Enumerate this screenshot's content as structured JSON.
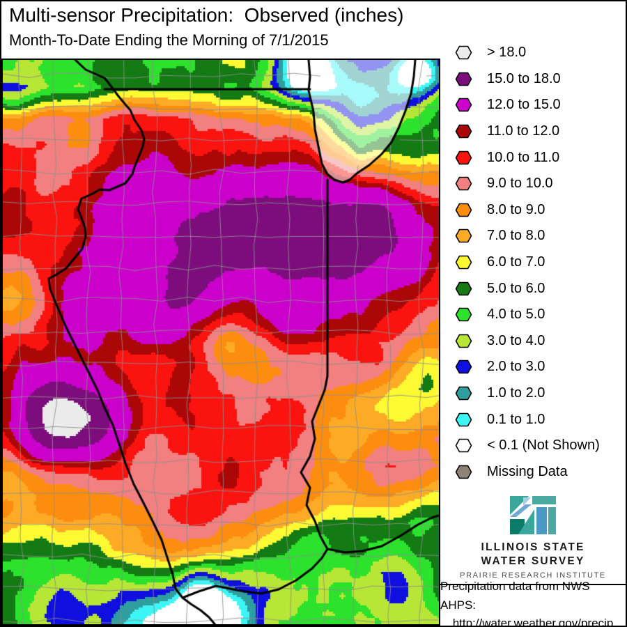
{
  "header": {
    "title": "Multi-sensor Precipitation:  Observed (inches)",
    "subtitle": "Month-To-Date Ending the Morning of 7/1/2015"
  },
  "legend": {
    "items": [
      {
        "label": "> 18.0",
        "color": "#ebebeb"
      },
      {
        "label": "15.0 to 18.0",
        "color": "#7d0d7d"
      },
      {
        "label": "12.0 to 15.0",
        "color": "#cb00cb"
      },
      {
        "label": "11.0 to 12.0",
        "color": "#ab0707"
      },
      {
        "label": "10.0 to 11.0",
        "color": "#fb1310"
      },
      {
        "label": "9.0 to 10.0",
        "color": "#f28080"
      },
      {
        "label": "8.0 to 9.0",
        "color": "#fd8d0e"
      },
      {
        "label": "7.0 to 8.0",
        "color": "#fdab27"
      },
      {
        "label": "6.0 to 7.0",
        "color": "#fdfa33"
      },
      {
        "label": "5.0 to 6.0",
        "color": "#147a14"
      },
      {
        "label": "4.0 to 5.0",
        "color": "#2ce22c"
      },
      {
        "label": "3.0 to 4.0",
        "color": "#b8e636"
      },
      {
        "label": "2.0 to 3.0",
        "color": "#0f0fe0"
      },
      {
        "label": "1.0 to 2.0",
        "color": "#2f9e9e"
      },
      {
        "label": "0.1 to 1.0",
        "color": "#3df5f5"
      },
      {
        "label": "< 0.1 (Not Shown)",
        "color": "#ffffff"
      },
      {
        "label": "Missing Data",
        "color": "#8c8374"
      }
    ]
  },
  "map": {
    "bins": [
      18,
      15,
      12,
      11,
      10,
      9,
      8,
      7,
      6,
      5,
      4,
      3,
      2,
      1,
      0.1
    ],
    "state_border_color": "#000000",
    "county_line_color": "#8d8d8d",
    "lake_wash": 0.55
  },
  "logo": {
    "line1": "ILLINOIS STATE",
    "line2": "WATER SURVEY",
    "line3": "PRAIRIE RESEARCH INSTITUTE",
    "colors": {
      "teal": "#3ba79c",
      "lightblue": "#a9cbe6",
      "midblue": "#6fa8d4",
      "darkteal": "#0c7c69",
      "rightteal": "#4aa9a1",
      "rightblue": "#4a98c4"
    }
  },
  "credit": {
    "line1": "Precipitation data from NWS AHPS:",
    "line2": "http://water.weather.gov/precip"
  }
}
